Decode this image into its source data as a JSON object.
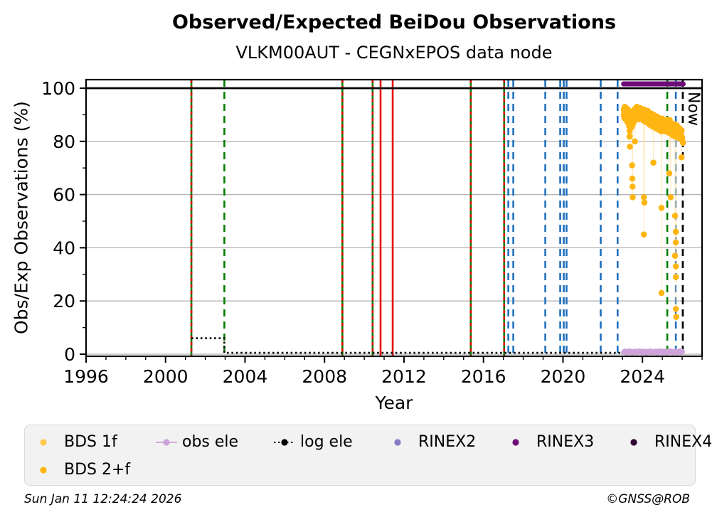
{
  "title": "Observed/Expected BeiDou Observations",
  "subtitle": "VLKM00AUT - CEGNxEPOS data node",
  "footer": {
    "timestamp": "Sun Jan 11 12:24:24 2026",
    "copyright": "©GNSS@ROB"
  },
  "legend": {
    "rows": [
      [
        {
          "label": "BDS 1f",
          "marker": "dot",
          "color": "#ffc94f"
        },
        {
          "label": "obs ele",
          "marker": "dot-hline",
          "color": "#cda4d9"
        },
        {
          "label": "log ele",
          "marker": "dot-dotted",
          "color": "#000000"
        },
        {
          "label": "RINEX2",
          "marker": "dot",
          "color": "#8a7cc4"
        },
        {
          "label": "RINEX3",
          "marker": "dot",
          "color": "#6f0c7a"
        },
        {
          "label": "RINEX4",
          "marker": "dot",
          "color": "#2e0433"
        }
      ],
      [
        {
          "label": "BDS 2+f",
          "marker": "dot",
          "color": "#ffb612"
        }
      ]
    ]
  },
  "chart_data": {
    "type": "scatter",
    "title": "Observed/Expected BeiDou Observations",
    "subtitle": "VLKM00AUT - CEGNxEPOS data node",
    "xlabel": "Year",
    "ylabel": "Obs/Exp Observations (%)",
    "xlim": [
      1996,
      2027
    ],
    "ylim": [
      -0.8,
      103.2
    ],
    "xticks": [
      1996,
      2000,
      2004,
      2008,
      2012,
      2016,
      2020,
      2024
    ],
    "yticks": [
      0,
      20,
      40,
      60,
      80,
      100
    ],
    "x_minor_step": 1,
    "y_minor_ticks": [
      10,
      30,
      50,
      70,
      90
    ],
    "grid": "horizontal-only",
    "grid_color": "#b3b3b3",
    "reference_line_y": 100,
    "now": {
      "x": 2026.03,
      "label": "Now"
    },
    "colors": {
      "green": "#007d00",
      "red": "#e60000",
      "blue": "#1f6fbe",
      "black": "#000000"
    },
    "event_lines": [
      {
        "x": 2001.3,
        "color": "green",
        "style": "solid"
      },
      {
        "x": 2001.3,
        "color": "red",
        "style": "dashed-short"
      },
      {
        "x": 2002.96,
        "color": "green",
        "style": "dashed"
      },
      {
        "x": 2008.9,
        "color": "green",
        "style": "solid"
      },
      {
        "x": 2008.9,
        "color": "red",
        "style": "dashed-short"
      },
      {
        "x": 2010.42,
        "color": "green",
        "style": "solid"
      },
      {
        "x": 2010.42,
        "color": "red",
        "style": "dashed-short"
      },
      {
        "x": 2010.82,
        "color": "red",
        "style": "solid"
      },
      {
        "x": 2011.43,
        "color": "red",
        "style": "solid"
      },
      {
        "x": 2015.36,
        "color": "green",
        "style": "solid"
      },
      {
        "x": 2015.36,
        "color": "red",
        "style": "dashed-short"
      },
      {
        "x": 2017.04,
        "color": "green",
        "style": "solid"
      },
      {
        "x": 2017.04,
        "color": "red",
        "style": "dashed-short"
      },
      {
        "x": 2017.25,
        "color": "blue",
        "style": "dashed"
      },
      {
        "x": 2017.5,
        "color": "blue",
        "style": "dashed"
      },
      {
        "x": 2019.11,
        "color": "blue",
        "style": "dashed"
      },
      {
        "x": 2019.86,
        "color": "blue",
        "style": "dashed"
      },
      {
        "x": 2020.04,
        "color": "blue",
        "style": "dashed"
      },
      {
        "x": 2020.18,
        "color": "blue",
        "style": "dashed"
      },
      {
        "x": 2021.9,
        "color": "blue",
        "style": "dashed"
      },
      {
        "x": 2022.75,
        "color": "blue",
        "style": "dashed"
      },
      {
        "x": 2025.25,
        "color": "green",
        "style": "dashed"
      },
      {
        "x": 2025.68,
        "color": "blue",
        "style": "dashed"
      },
      {
        "x": 2026.03,
        "color": "black",
        "style": "dashed"
      }
    ],
    "series": [
      {
        "name": "log ele",
        "type": "line",
        "style": "dotted",
        "color": "#000000",
        "points": [
          [
            2001.3,
            6
          ],
          [
            2002.96,
            6
          ],
          [
            2002.96,
            0.5
          ],
          [
            2026.03,
            0.5
          ]
        ]
      },
      {
        "name": "RINEX3",
        "type": "thick-line",
        "color": "#6f0c7a",
        "width": 7,
        "points": [
          [
            2023.05,
            101.6
          ],
          [
            2026.05,
            101.6
          ]
        ]
      },
      {
        "name": "BDS 1f",
        "type": "scatter",
        "color": "#ffc94f",
        "radius": 4,
        "points": [
          [
            2023.1,
            91.8
          ],
          [
            2023.3,
            90.8
          ],
          [
            2023.5,
            89.8
          ],
          [
            2023.7,
            92.2
          ],
          [
            2023.9,
            91.4
          ],
          [
            2024.1,
            90.6
          ],
          [
            2024.3,
            89.6
          ],
          [
            2024.5,
            89.2
          ],
          [
            2024.7,
            88.2
          ],
          [
            2024.9,
            87.6
          ],
          [
            2025.1,
            87.2
          ],
          [
            2025.3,
            86.6
          ],
          [
            2025.5,
            85.6
          ],
          [
            2025.7,
            85.2
          ],
          [
            2025.9,
            84.2
          ]
        ]
      },
      {
        "name": "BDS 2+f",
        "type": "scatter",
        "color": "#ffb612",
        "radius": 4.3,
        "connect_color": "#ffdf9e",
        "thicken_above": 83,
        "thicken_offset": 2.2,
        "points": [
          [
            2023.06,
            92
          ],
          [
            2023.09,
            91
          ],
          [
            2023.12,
            93
          ],
          [
            2023.15,
            90.5
          ],
          [
            2023.18,
            92.5
          ],
          [
            2023.21,
            91
          ],
          [
            2023.24,
            89.5
          ],
          [
            2023.27,
            92
          ],
          [
            2023.3,
            90
          ],
          [
            2023.33,
            88
          ],
          [
            2023.35,
            84
          ],
          [
            2023.36,
            82
          ],
          [
            2023.37,
            78
          ],
          [
            2023.39,
            89
          ],
          [
            2023.42,
            91
          ],
          [
            2023.45,
            87.5
          ],
          [
            2023.48,
            90.5
          ],
          [
            2023.48,
            71
          ],
          [
            2023.49,
            66
          ],
          [
            2023.5,
            63
          ],
          [
            2023.51,
            59
          ],
          [
            2023.51,
            88.5
          ],
          [
            2023.54,
            91.5
          ],
          [
            2023.57,
            89.5
          ],
          [
            2023.6,
            92
          ],
          [
            2023.62,
            80
          ],
          [
            2023.63,
            90.5
          ],
          [
            2023.66,
            92.5
          ],
          [
            2023.69,
            91
          ],
          [
            2023.72,
            93
          ],
          [
            2023.75,
            91.5
          ],
          [
            2023.78,
            92.5
          ],
          [
            2023.81,
            90.5
          ],
          [
            2023.84,
            92
          ],
          [
            2023.87,
            91
          ],
          [
            2023.9,
            92.5
          ],
          [
            2023.93,
            91.5
          ],
          [
            2023.96,
            92
          ],
          [
            2023.99,
            90.5
          ],
          [
            2024.02,
            91.5
          ],
          [
            2024.05,
            90
          ],
          [
            2024.07,
            59
          ],
          [
            2024.07,
            45
          ],
          [
            2024.08,
            92
          ],
          [
            2024.1,
            57
          ],
          [
            2024.11,
            90.5
          ],
          [
            2024.14,
            91.5
          ],
          [
            2024.17,
            89.5
          ],
          [
            2024.2,
            91
          ],
          [
            2024.23,
            90
          ],
          [
            2024.26,
            91.5
          ],
          [
            2024.29,
            89.5
          ],
          [
            2024.32,
            90.5
          ],
          [
            2024.35,
            88.5
          ],
          [
            2024.38,
            90
          ],
          [
            2024.41,
            89
          ],
          [
            2024.44,
            90.5
          ],
          [
            2024.47,
            88
          ],
          [
            2024.5,
            89.5
          ],
          [
            2024.53,
            88.5
          ],
          [
            2024.55,
            72
          ],
          [
            2024.56,
            90
          ],
          [
            2024.59,
            87.5
          ],
          [
            2024.62,
            89
          ],
          [
            2024.65,
            88
          ],
          [
            2024.68,
            89.5
          ],
          [
            2024.71,
            87
          ],
          [
            2024.74,
            88.5
          ],
          [
            2024.77,
            87.5
          ],
          [
            2024.8,
            89
          ],
          [
            2024.83,
            86.5
          ],
          [
            2024.86,
            88
          ],
          [
            2024.89,
            87
          ],
          [
            2024.92,
            88.5
          ],
          [
            2024.95,
            86
          ],
          [
            2024.96,
            55
          ],
          [
            2024.96,
            23
          ],
          [
            2024.98,
            87.5
          ],
          [
            2025.01,
            88.5
          ],
          [
            2025.04,
            87
          ],
          [
            2025.07,
            88
          ],
          [
            2025.1,
            86.5
          ],
          [
            2025.13,
            87.5
          ],
          [
            2025.16,
            86
          ],
          [
            2025.19,
            87
          ],
          [
            2025.22,
            88
          ],
          [
            2025.25,
            86.5
          ],
          [
            2025.28,
            87.5
          ],
          [
            2025.31,
            85.5
          ],
          [
            2025.34,
            86.5
          ],
          [
            2025.35,
            68
          ],
          [
            2025.37,
            88
          ],
          [
            2025.4,
            86
          ],
          [
            2025.42,
            59
          ],
          [
            2025.43,
            87
          ],
          [
            2025.46,
            85
          ],
          [
            2025.49,
            86.5
          ],
          [
            2025.52,
            84.5
          ],
          [
            2025.55,
            86
          ],
          [
            2025.58,
            85
          ],
          [
            2025.61,
            86.5
          ],
          [
            2025.64,
            84
          ],
          [
            2025.64,
            52
          ],
          [
            2025.64,
            37
          ],
          [
            2025.67,
            85.5
          ],
          [
            2025.68,
            46
          ],
          [
            2025.68,
            42
          ],
          [
            2025.68,
            33
          ],
          [
            2025.68,
            29
          ],
          [
            2025.68,
            17
          ],
          [
            2025.7,
            14
          ],
          [
            2025.7,
            84.5
          ],
          [
            2025.73,
            86
          ],
          [
            2025.76,
            84
          ],
          [
            2025.79,
            85
          ],
          [
            2025.82,
            83.5
          ],
          [
            2025.85,
            85
          ],
          [
            2025.88,
            83
          ],
          [
            2025.91,
            84.5
          ],
          [
            2025.94,
            82.5
          ],
          [
            2025.97,
            84
          ],
          [
            2025.97,
            74
          ],
          [
            2026.0,
            81.5
          ],
          [
            2026.02,
            80
          ],
          [
            2026.04,
            79.5
          ]
        ]
      },
      {
        "name": "obs ele",
        "type": "scatter",
        "color": "#cda4d9",
        "radius": 3.8,
        "connect_color": "#cda4d9",
        "points": [
          [
            2023.06,
            0.8
          ],
          [
            2023.12,
            1.1
          ],
          [
            2023.18,
            0.6
          ],
          [
            2023.24,
            1.0
          ],
          [
            2023.3,
            0.7
          ],
          [
            2023.36,
            1.2
          ],
          [
            2023.42,
            0.8
          ],
          [
            2023.48,
            0.5
          ],
          [
            2023.54,
            1.0
          ],
          [
            2023.6,
            0.7
          ],
          [
            2023.66,
            1.1
          ],
          [
            2023.72,
            0.6
          ],
          [
            2023.78,
            0.9
          ],
          [
            2023.84,
            1.2
          ],
          [
            2023.9,
            0.7
          ],
          [
            2023.96,
            1.0
          ],
          [
            2024.02,
            0.6
          ],
          [
            2024.08,
            1.1
          ],
          [
            2024.14,
            0.8
          ],
          [
            2024.2,
            0.5
          ],
          [
            2024.26,
            1.0
          ],
          [
            2024.32,
            0.7
          ],
          [
            2024.38,
            1.2
          ],
          [
            2024.44,
            0.8
          ],
          [
            2024.5,
            0.6
          ],
          [
            2024.56,
            1.0
          ],
          [
            2024.62,
            0.7
          ],
          [
            2024.68,
            1.1
          ],
          [
            2024.74,
            0.5
          ],
          [
            2024.8,
            0.9
          ],
          [
            2024.86,
            1.2
          ],
          [
            2024.92,
            0.7
          ],
          [
            2024.98,
            1.0
          ],
          [
            2025.04,
            0.6
          ],
          [
            2025.1,
            1.1
          ],
          [
            2025.16,
            0.8
          ],
          [
            2025.22,
            0.5
          ],
          [
            2025.28,
            1.0
          ],
          [
            2025.34,
            0.7
          ],
          [
            2025.4,
            1.2
          ],
          [
            2025.46,
            0.8
          ],
          [
            2025.52,
            0.6
          ],
          [
            2025.58,
            1.0
          ],
          [
            2025.64,
            0.7
          ],
          [
            2025.7,
            1.1
          ],
          [
            2025.76,
            0.6
          ],
          [
            2025.82,
            0.9
          ],
          [
            2025.88,
            1.2
          ],
          [
            2025.94,
            0.7
          ],
          [
            2026.0,
            1.0
          ]
        ]
      }
    ]
  }
}
